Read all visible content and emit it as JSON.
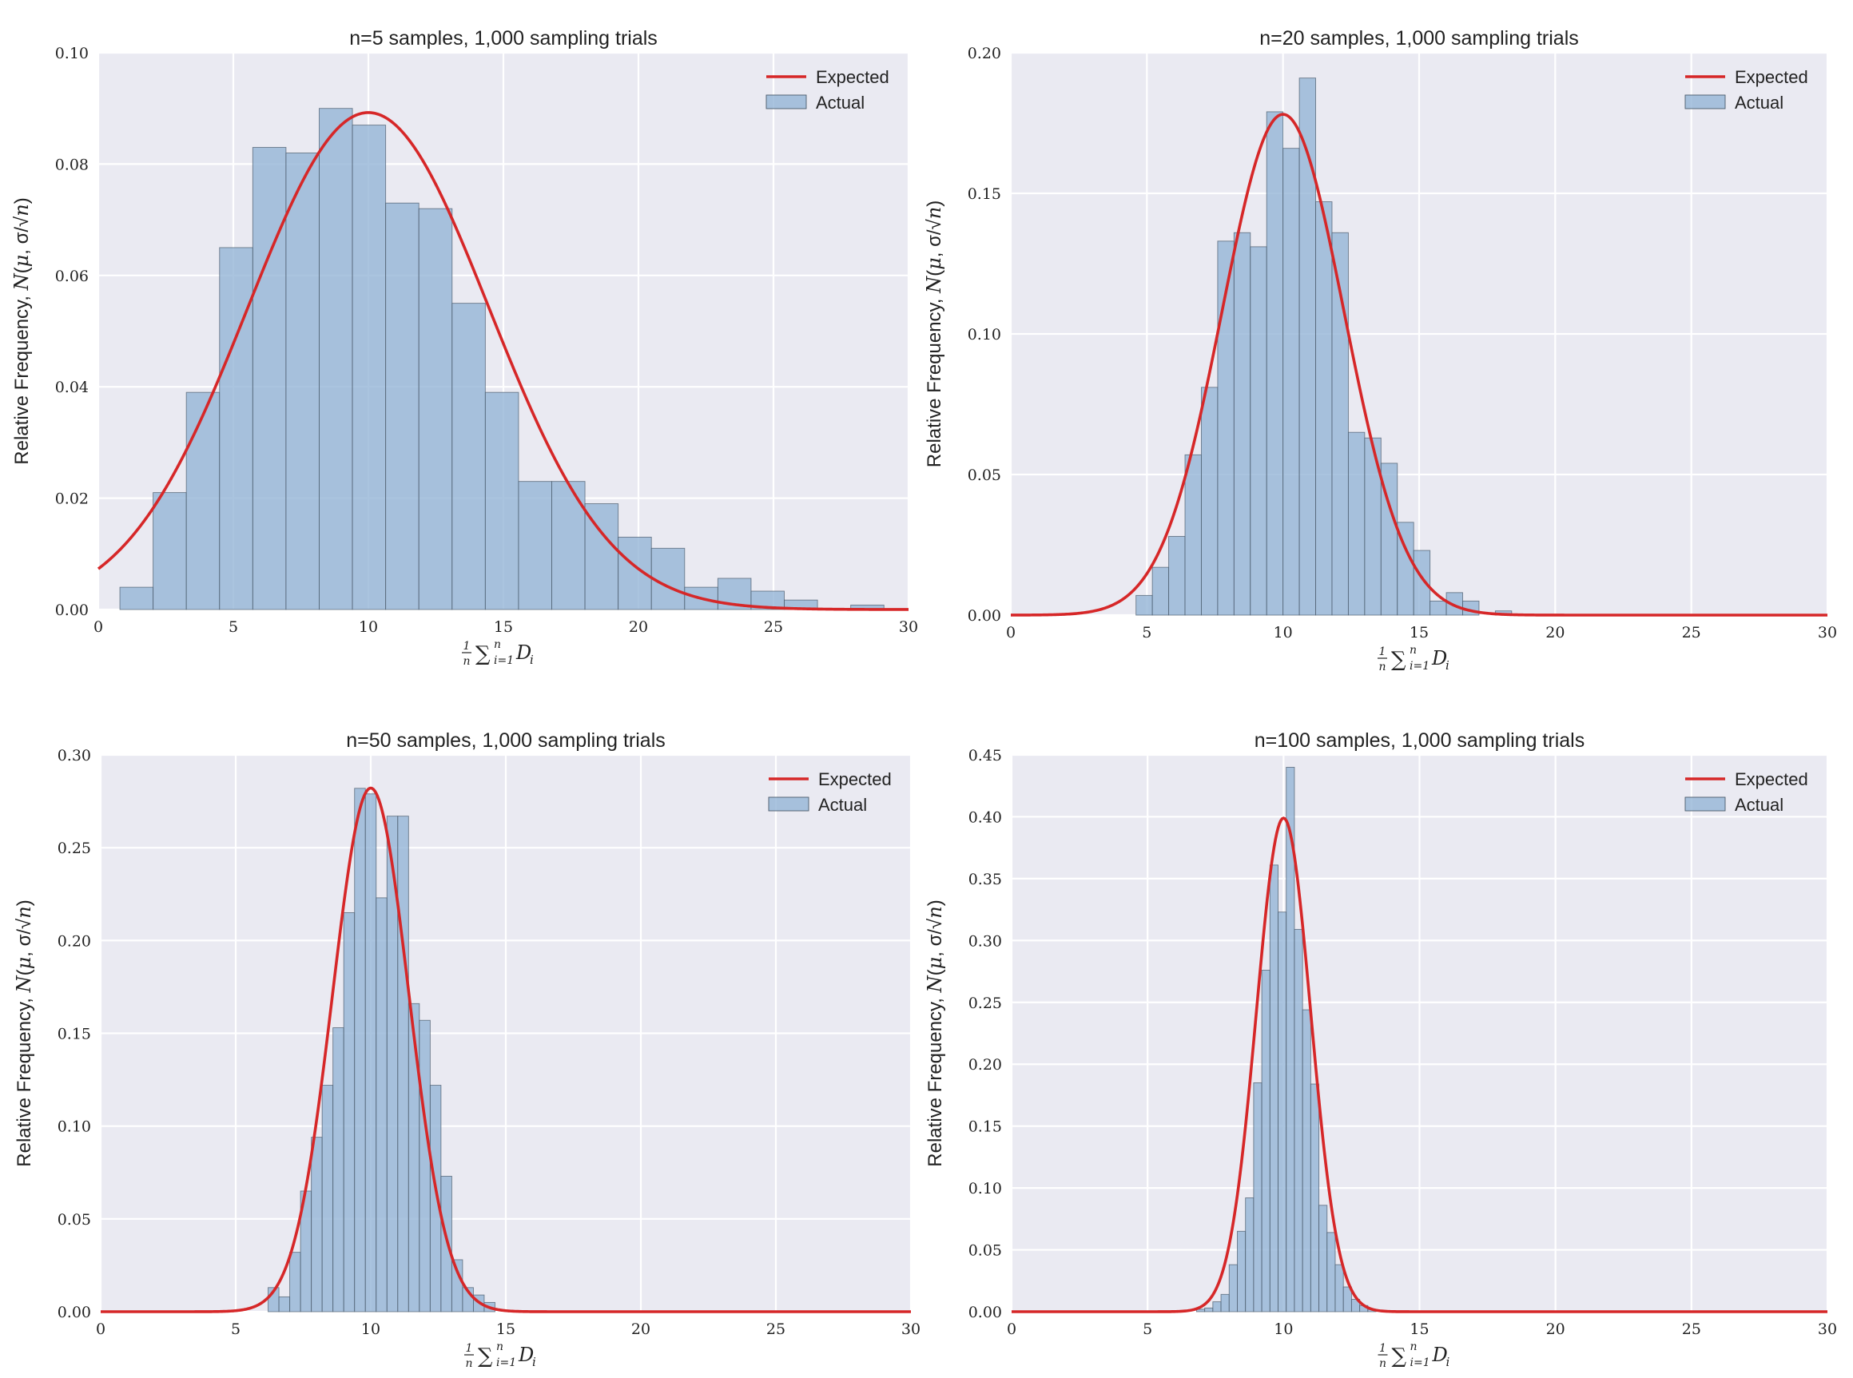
{
  "chart_data": [
    {
      "type": "bar",
      "title": "n=5 samples, 1,000 sampling trials",
      "xlabel": "1/n Σ_{i=1}^{n} D_i",
      "ylabel": "Relative Frequency, N(μ, σ/√n)",
      "xlim": [
        0,
        30
      ],
      "ylim": [
        0,
        0.1
      ],
      "xticks": [
        0,
        5,
        10,
        15,
        20,
        25,
        30
      ],
      "yticks": [
        0.0,
        0.02,
        0.04,
        0.06,
        0.08,
        0.1
      ],
      "ytick_labels": [
        "0.00",
        "0.02",
        "0.04",
        "0.06",
        "0.08",
        "0.10"
      ],
      "grid": true,
      "legend": {
        "position": "top-right",
        "entries": [
          "Expected",
          "Actual"
        ]
      },
      "series": [
        {
          "name": "Actual",
          "kind": "histogram",
          "color": "#92b4d6",
          "bin_edges": [
            0.8,
            2.03,
            3.26,
            4.49,
            5.72,
            6.95,
            8.18,
            9.41,
            10.64,
            11.87,
            13.1,
            14.33,
            15.56,
            16.79,
            18.02,
            19.25,
            20.48,
            21.71,
            22.94,
            24.17,
            25.4,
            26.63,
            27.86,
            29.09
          ],
          "values": [
            0.004,
            0.021,
            0.039,
            0.065,
            0.083,
            0.082,
            0.09,
            0.087,
            0.073,
            0.072,
            0.055,
            0.039,
            0.023,
            0.023,
            0.019,
            0.013,
            0.011,
            0.004,
            0.0056,
            0.0033,
            0.0017,
            0.0,
            0.0008
          ]
        },
        {
          "name": "Expected",
          "kind": "normal-pdf",
          "color": "#d62728",
          "mu": 10,
          "sigma": 4.47
        }
      ]
    },
    {
      "type": "bar",
      "title": "n=20 samples, 1,000 sampling trials",
      "xlabel": "1/n Σ_{i=1}^{n} D_i",
      "ylabel": "Relative Frequency, N(μ, σ/√n)",
      "xlim": [
        0,
        30
      ],
      "ylim": [
        0,
        0.2
      ],
      "xticks": [
        0,
        5,
        10,
        15,
        20,
        25,
        30
      ],
      "yticks": [
        0.0,
        0.05,
        0.1,
        0.15,
        0.2
      ],
      "ytick_labels": [
        "0.00",
        "0.05",
        "0.10",
        "0.15",
        "0.20"
      ],
      "grid": true,
      "legend": {
        "position": "top-right",
        "entries": [
          "Expected",
          "Actual"
        ]
      },
      "series": [
        {
          "name": "Actual",
          "kind": "histogram",
          "color": "#92b4d6",
          "bin_edges": [
            4.6,
            5.2,
            5.8,
            6.4,
            7.0,
            7.6,
            8.2,
            8.8,
            9.4,
            10.0,
            10.6,
            11.2,
            11.8,
            12.4,
            13.0,
            13.6,
            14.2,
            14.8,
            15.4,
            16.0,
            16.6,
            17.2,
            17.8,
            18.4
          ],
          "values": [
            0.007,
            0.017,
            0.028,
            0.057,
            0.081,
            0.133,
            0.136,
            0.131,
            0.179,
            0.166,
            0.191,
            0.147,
            0.136,
            0.065,
            0.063,
            0.054,
            0.033,
            0.023,
            0.005,
            0.008,
            0.005,
            0.0,
            0.0015
          ]
        },
        {
          "name": "Expected",
          "kind": "normal-pdf",
          "color": "#d62728",
          "mu": 10,
          "sigma": 2.24
        }
      ]
    },
    {
      "type": "bar",
      "title": "n=50 samples, 1,000 sampling trials",
      "xlabel": "1/n Σ_{i=1}^{n} D_i",
      "ylabel": "Relative Frequency, N(μ, σ/√n)",
      "xlim": [
        0,
        30
      ],
      "ylim": [
        0,
        0.3
      ],
      "xticks": [
        0,
        5,
        10,
        15,
        20,
        25,
        30
      ],
      "yticks": [
        0.0,
        0.05,
        0.1,
        0.15,
        0.2,
        0.25,
        0.3
      ],
      "ytick_labels": [
        "0.00",
        "0.05",
        "0.10",
        "0.15",
        "0.20",
        "0.25",
        "0.30"
      ],
      "grid": true,
      "legend": {
        "position": "top-right",
        "entries": [
          "Expected",
          "Actual"
        ]
      },
      "series": [
        {
          "name": "Actual",
          "kind": "histogram",
          "color": "#92b4d6",
          "bin_edges": [
            6.2,
            6.6,
            7.0,
            7.4,
            7.8,
            8.2,
            8.6,
            9.0,
            9.4,
            9.8,
            10.2,
            10.6,
            11.0,
            11.4,
            11.8,
            12.2,
            12.6,
            13.0,
            13.4,
            13.8,
            14.2,
            14.6
          ],
          "values": [
            0.013,
            0.008,
            0.032,
            0.065,
            0.094,
            0.122,
            0.153,
            0.215,
            0.282,
            0.279,
            0.223,
            0.267,
            0.267,
            0.166,
            0.157,
            0.122,
            0.073,
            0.028,
            0.013,
            0.009,
            0.005
          ]
        },
        {
          "name": "Expected",
          "kind": "normal-pdf",
          "color": "#d62728",
          "mu": 10,
          "sigma": 1.414
        }
      ]
    },
    {
      "type": "bar",
      "title": "n=100 samples, 1,000 sampling trials",
      "xlabel": "1/n Σ_{i=1}^{n} D_i",
      "ylabel": "Relative Frequency, N(μ, σ/√n)",
      "xlim": [
        0,
        30
      ],
      "ylim": [
        0,
        0.45
      ],
      "xticks": [
        0,
        5,
        10,
        15,
        20,
        25,
        30
      ],
      "yticks": [
        0.0,
        0.05,
        0.1,
        0.15,
        0.2,
        0.25,
        0.3,
        0.35,
        0.4,
        0.45
      ],
      "ytick_labels": [
        "0.00",
        "0.05",
        "0.10",
        "0.15",
        "0.20",
        "0.25",
        "0.30",
        "0.35",
        "0.40",
        "0.45"
      ],
      "grid": true,
      "legend": {
        "position": "top-right",
        "entries": [
          "Expected",
          "Actual"
        ]
      },
      "series": [
        {
          "name": "Actual",
          "kind": "histogram",
          "color": "#92b4d6",
          "bin_edges": [
            6.8,
            7.1,
            7.4,
            7.7,
            8.0,
            8.3,
            8.6,
            8.9,
            9.2,
            9.5,
            9.8,
            10.1,
            10.4,
            10.7,
            11.0,
            11.3,
            11.6,
            11.9,
            12.2,
            12.5,
            12.8,
            13.1,
            13.4
          ],
          "values": [
            0.002,
            0.003,
            0.008,
            0.014,
            0.038,
            0.065,
            0.092,
            0.185,
            0.276,
            0.361,
            0.323,
            0.44,
            0.309,
            0.244,
            0.184,
            0.086,
            0.064,
            0.038,
            0.02,
            0.01,
            0.005,
            0.002
          ]
        },
        {
          "name": "Expected",
          "kind": "normal-pdf",
          "color": "#d62728",
          "mu": 10,
          "sigma": 1.0
        }
      ]
    }
  ]
}
